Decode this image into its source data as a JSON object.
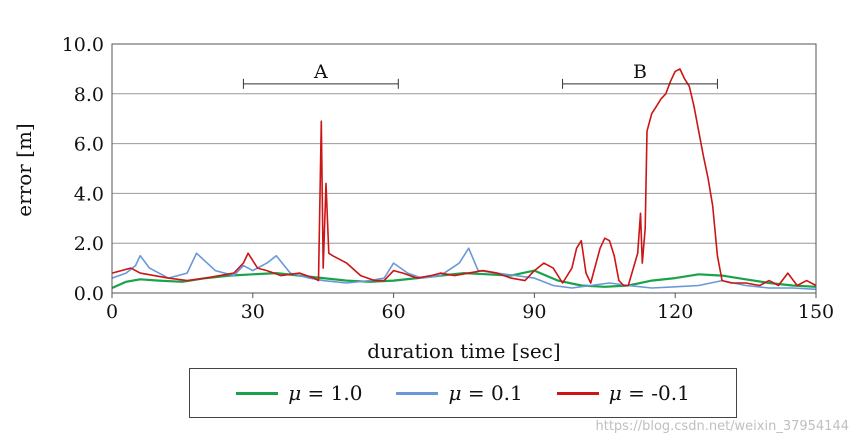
{
  "chart_data": {
    "type": "line",
    "title": "",
    "xlabel": "duration time [sec]",
    "ylabel": "error [m]",
    "xlim": [
      0,
      150
    ],
    "ylim": [
      0,
      10
    ],
    "xticks": [
      0,
      30,
      60,
      90,
      120,
      150
    ],
    "xtick_labels": [
      "0",
      "30",
      "60",
      "90",
      "120",
      "150"
    ],
    "yticks": [
      0,
      2,
      4,
      6,
      8,
      10
    ],
    "ytick_labels": [
      "0.0",
      "2.0",
      "4.0",
      "6.0",
      "8.0",
      "10.0"
    ],
    "grid": "horizontal",
    "annotations": [
      {
        "label": "A",
        "x_start": 28,
        "x_end": 61,
        "y": 8.4
      },
      {
        "label": "B",
        "x_start": 96,
        "x_end": 129,
        "y": 8.4
      }
    ],
    "series": [
      {
        "name": "μ = 1.0",
        "symbol": "μ",
        "value_text": " = 1.0",
        "color": "#1aa24b",
        "x": [
          0,
          3,
          6,
          10,
          15,
          20,
          25,
          30,
          35,
          40,
          45,
          50,
          55,
          60,
          65,
          70,
          75,
          80,
          85,
          90,
          95,
          100,
          105,
          110,
          115,
          120,
          125,
          130,
          135,
          140,
          145,
          150
        ],
        "y": [
          0.2,
          0.45,
          0.55,
          0.5,
          0.45,
          0.6,
          0.7,
          0.75,
          0.8,
          0.7,
          0.6,
          0.5,
          0.45,
          0.5,
          0.6,
          0.7,
          0.8,
          0.75,
          0.7,
          0.9,
          0.5,
          0.3,
          0.25,
          0.3,
          0.5,
          0.6,
          0.75,
          0.7,
          0.55,
          0.4,
          0.3,
          0.25
        ]
      },
      {
        "name": "μ = 0.1",
        "symbol": "μ",
        "value_text": " = 0.1",
        "color": "#6a98d8",
        "x": [
          0,
          3,
          5,
          6,
          8,
          12,
          16,
          18,
          22,
          26,
          28,
          30,
          33,
          35,
          38,
          42,
          45,
          50,
          55,
          58,
          60,
          63,
          66,
          70,
          74,
          76,
          78,
          82,
          86,
          90,
          94,
          98,
          102,
          106,
          110,
          115,
          120,
          125,
          130,
          135,
          140,
          145,
          150
        ],
        "y": [
          0.6,
          0.8,
          1.1,
          1.5,
          1.0,
          0.6,
          0.8,
          1.6,
          0.9,
          0.7,
          1.1,
          0.9,
          1.2,
          1.5,
          0.8,
          0.6,
          0.5,
          0.4,
          0.5,
          0.6,
          1.2,
          0.8,
          0.6,
          0.7,
          1.2,
          1.8,
          0.9,
          0.8,
          0.7,
          0.6,
          0.3,
          0.2,
          0.3,
          0.4,
          0.3,
          0.2,
          0.25,
          0.3,
          0.5,
          0.3,
          0.2,
          0.2,
          0.15
        ]
      },
      {
        "name": "μ = -0.1",
        "symbol": "μ",
        "value_text": " = -0.1",
        "color": "#cc1515",
        "x": [
          0,
          2,
          4,
          6,
          9,
          12,
          16,
          20,
          23,
          26,
          28,
          29,
          31,
          33,
          36,
          40,
          43,
          44,
          44.6,
          45,
          45.6,
          46.2,
          47,
          50,
          53,
          56,
          58,
          60,
          62,
          65,
          68,
          70,
          73,
          76,
          79,
          82,
          85,
          88,
          90,
          92,
          94,
          96,
          98,
          99,
          100,
          101,
          102,
          104,
          105,
          106,
          107,
          108,
          109,
          110,
          112,
          112.6,
          113,
          113.6,
          114,
          115,
          116,
          117,
          118,
          119,
          120,
          121,
          122,
          123,
          124,
          125,
          126,
          127,
          128,
          129,
          130,
          132,
          135,
          138,
          140,
          142,
          144,
          146,
          148,
          150
        ],
        "y": [
          0.8,
          0.9,
          1.0,
          0.8,
          0.7,
          0.6,
          0.5,
          0.6,
          0.7,
          0.8,
          1.2,
          1.6,
          1.0,
          0.9,
          0.7,
          0.8,
          0.6,
          0.5,
          6.9,
          1.0,
          4.4,
          1.6,
          1.5,
          1.2,
          0.7,
          0.5,
          0.5,
          0.9,
          0.8,
          0.6,
          0.7,
          0.8,
          0.7,
          0.8,
          0.9,
          0.8,
          0.6,
          0.5,
          0.9,
          1.2,
          1.0,
          0.4,
          1.0,
          1.8,
          2.1,
          0.8,
          0.4,
          1.8,
          2.2,
          2.1,
          1.5,
          0.5,
          0.3,
          0.3,
          1.6,
          3.2,
          1.2,
          2.6,
          6.5,
          7.2,
          7.5,
          7.8,
          8.0,
          8.5,
          8.9,
          9.0,
          8.6,
          8.3,
          7.5,
          6.5,
          5.5,
          4.6,
          3.5,
          1.5,
          0.5,
          0.4,
          0.4,
          0.3,
          0.5,
          0.3,
          0.8,
          0.3,
          0.5,
          0.3
        ]
      }
    ]
  },
  "watermark": "https://blog.csdn.net/weixin_37954144"
}
